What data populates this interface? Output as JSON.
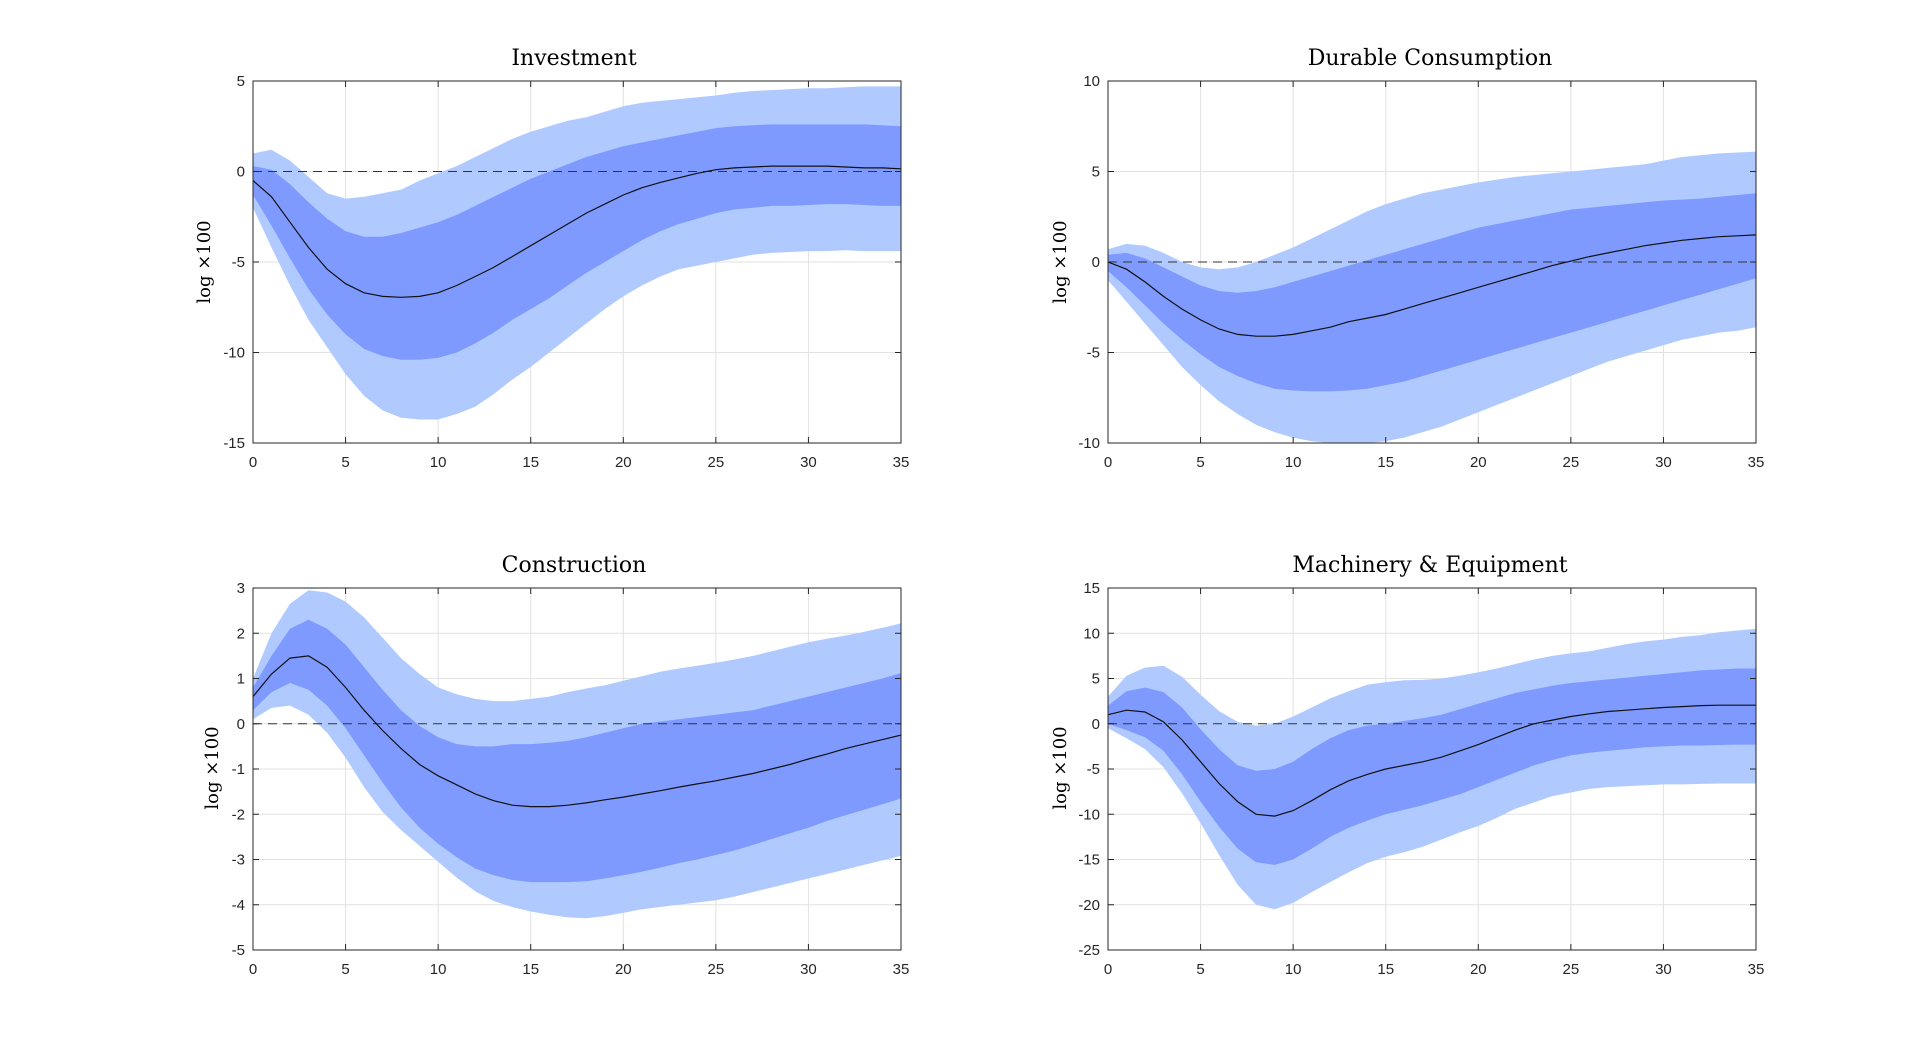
{
  "colors": {
    "outer_band": "#b0caff",
    "inner_band": "#7f9aff",
    "median": "#111111",
    "zero_line": "#333333"
  },
  "chart_data": [
    {
      "type": "area",
      "title": "Investment",
      "ylabel": "log ×100",
      "xlabel": "",
      "xlim": [
        0,
        35
      ],
      "ylim": [
        -15,
        5
      ],
      "xticks": [
        0,
        5,
        10,
        15,
        20,
        25,
        30,
        35
      ],
      "yticks": [
        -15,
        -10,
        -5,
        0,
        5
      ],
      "grid": true,
      "zero_line": true,
      "x": [
        0,
        1,
        2,
        3,
        4,
        5,
        6,
        7,
        8,
        9,
        10,
        11,
        12,
        13,
        14,
        15,
        16,
        17,
        18,
        19,
        20,
        21,
        22,
        23,
        24,
        25,
        26,
        27,
        28,
        29,
        30,
        31,
        32,
        33,
        34,
        35
      ],
      "series": [
        {
          "name": "median",
          "values": [
            -0.5,
            -1.4,
            -2.8,
            -4.2,
            -5.4,
            -6.2,
            -6.7,
            -6.9,
            -6.95,
            -6.9,
            -6.7,
            -6.3,
            -5.8,
            -5.3,
            -4.7,
            -4.1,
            -3.5,
            -2.9,
            -2.3,
            -1.8,
            -1.3,
            -0.9,
            -0.6,
            -0.35,
            -0.1,
            0.1,
            0.2,
            0.25,
            0.3,
            0.3,
            0.3,
            0.3,
            0.25,
            0.2,
            0.2,
            0.15
          ]
        },
        {
          "name": "inner_upper",
          "values": [
            0.3,
            0.1,
            -0.7,
            -1.7,
            -2.6,
            -3.3,
            -3.6,
            -3.6,
            -3.4,
            -3.1,
            -2.8,
            -2.4,
            -1.9,
            -1.4,
            -0.9,
            -0.4,
            0.0,
            0.4,
            0.8,
            1.1,
            1.4,
            1.6,
            1.8,
            2.0,
            2.2,
            2.4,
            2.5,
            2.55,
            2.6,
            2.6,
            2.6,
            2.6,
            2.6,
            2.6,
            2.55,
            2.5
          ]
        },
        {
          "name": "inner_lower",
          "values": [
            -1.3,
            -3.0,
            -4.8,
            -6.5,
            -7.9,
            -9.0,
            -9.8,
            -10.2,
            -10.4,
            -10.4,
            -10.3,
            -10.0,
            -9.5,
            -8.9,
            -8.2,
            -7.6,
            -7.0,
            -6.3,
            -5.6,
            -5.0,
            -4.4,
            -3.8,
            -3.3,
            -2.9,
            -2.6,
            -2.3,
            -2.1,
            -2.0,
            -1.9,
            -1.9,
            -1.85,
            -1.8,
            -1.8,
            -1.85,
            -1.9,
            -1.9
          ]
        },
        {
          "name": "outer_upper",
          "values": [
            1.0,
            1.2,
            0.6,
            -0.3,
            -1.2,
            -1.5,
            -1.4,
            -1.2,
            -1.0,
            -0.5,
            -0.1,
            0.3,
            0.8,
            1.3,
            1.8,
            2.2,
            2.5,
            2.8,
            3.0,
            3.3,
            3.6,
            3.8,
            3.9,
            4.0,
            4.1,
            4.2,
            4.35,
            4.45,
            4.5,
            4.55,
            4.6,
            4.6,
            4.65,
            4.7,
            4.7,
            4.7
          ]
        },
        {
          "name": "outer_lower",
          "values": [
            -2.0,
            -4.2,
            -6.3,
            -8.2,
            -9.7,
            -11.2,
            -12.4,
            -13.2,
            -13.6,
            -13.7,
            -13.7,
            -13.4,
            -13.0,
            -12.3,
            -11.5,
            -10.8,
            -10.0,
            -9.2,
            -8.4,
            -7.6,
            -6.9,
            -6.3,
            -5.8,
            -5.4,
            -5.2,
            -5.0,
            -4.8,
            -4.6,
            -4.5,
            -4.45,
            -4.4,
            -4.4,
            -4.35,
            -4.4,
            -4.4,
            -4.4
          ]
        }
      ]
    },
    {
      "type": "area",
      "title": "Durable Consumption",
      "ylabel": "log ×100",
      "xlabel": "",
      "xlim": [
        0,
        35
      ],
      "ylim": [
        -10,
        10
      ],
      "xticks": [
        0,
        5,
        10,
        15,
        20,
        25,
        30,
        35
      ],
      "yticks": [
        -10,
        -5,
        0,
        5,
        10
      ],
      "grid": true,
      "zero_line": true,
      "x": [
        0,
        1,
        2,
        3,
        4,
        5,
        6,
        7,
        8,
        9,
        10,
        11,
        12,
        13,
        14,
        15,
        16,
        17,
        18,
        19,
        20,
        21,
        22,
        23,
        24,
        25,
        26,
        27,
        28,
        29,
        30,
        31,
        32,
        33,
        34,
        35
      ],
      "series": [
        {
          "name": "median",
          "values": [
            0,
            -0.4,
            -1.1,
            -1.9,
            -2.6,
            -3.2,
            -3.7,
            -4.0,
            -4.1,
            -4.1,
            -4.0,
            -3.8,
            -3.6,
            -3.3,
            -3.1,
            -2.9,
            -2.6,
            -2.3,
            -2.0,
            -1.7,
            -1.4,
            -1.1,
            -0.8,
            -0.5,
            -0.2,
            0.05,
            0.3,
            0.5,
            0.7,
            0.9,
            1.05,
            1.2,
            1.3,
            1.4,
            1.45,
            1.5
          ]
        },
        {
          "name": "inner_upper",
          "values": [
            0.4,
            0.5,
            0.2,
            -0.3,
            -0.8,
            -1.3,
            -1.6,
            -1.7,
            -1.6,
            -1.4,
            -1.1,
            -0.8,
            -0.5,
            -0.2,
            0.1,
            0.4,
            0.7,
            1.0,
            1.3,
            1.6,
            1.9,
            2.1,
            2.3,
            2.5,
            2.7,
            2.9,
            3.0,
            3.1,
            3.2,
            3.3,
            3.4,
            3.45,
            3.5,
            3.6,
            3.7,
            3.8
          ]
        },
        {
          "name": "inner_lower",
          "values": [
            -0.5,
            -1.4,
            -2.4,
            -3.4,
            -4.3,
            -5.1,
            -5.8,
            -6.3,
            -6.7,
            -7.0,
            -7.1,
            -7.15,
            -7.15,
            -7.1,
            -7.0,
            -6.8,
            -6.6,
            -6.3,
            -6.0,
            -5.7,
            -5.4,
            -5.1,
            -4.8,
            -4.5,
            -4.2,
            -3.9,
            -3.6,
            -3.3,
            -3.0,
            -2.7,
            -2.4,
            -2.1,
            -1.8,
            -1.5,
            -1.2,
            -0.9
          ]
        },
        {
          "name": "outer_upper",
          "values": [
            0.7,
            1.0,
            0.9,
            0.5,
            0.0,
            -0.3,
            -0.4,
            -0.3,
            0.0,
            0.4,
            0.8,
            1.3,
            1.8,
            2.3,
            2.8,
            3.2,
            3.5,
            3.8,
            4.0,
            4.2,
            4.4,
            4.55,
            4.7,
            4.8,
            4.9,
            5.0,
            5.1,
            5.2,
            5.3,
            5.4,
            5.6,
            5.8,
            5.9,
            6.0,
            6.05,
            6.1
          ]
        },
        {
          "name": "outer_lower",
          "values": [
            -1.0,
            -2.2,
            -3.4,
            -4.6,
            -5.8,
            -6.8,
            -7.7,
            -8.4,
            -9.0,
            -9.4,
            -9.7,
            -9.9,
            -10.0,
            -10.05,
            -10.0,
            -9.9,
            -9.7,
            -9.4,
            -9.1,
            -8.7,
            -8.3,
            -7.9,
            -7.5,
            -7.1,
            -6.7,
            -6.3,
            -5.9,
            -5.5,
            -5.2,
            -4.9,
            -4.6,
            -4.3,
            -4.1,
            -3.9,
            -3.8,
            -3.6
          ]
        }
      ]
    },
    {
      "type": "area",
      "title": "Construction",
      "ylabel": "log ×100",
      "xlabel": "",
      "xlim": [
        0,
        35
      ],
      "ylim": [
        -5,
        3
      ],
      "xticks": [
        0,
        5,
        10,
        15,
        20,
        25,
        30,
        35
      ],
      "yticks": [
        -5,
        -4,
        -3,
        -2,
        -1,
        0,
        1,
        2,
        3
      ],
      "grid": true,
      "zero_line": true,
      "x": [
        0,
        1,
        2,
        3,
        4,
        5,
        6,
        7,
        8,
        9,
        10,
        11,
        12,
        13,
        14,
        15,
        16,
        17,
        18,
        19,
        20,
        21,
        22,
        23,
        24,
        25,
        26,
        27,
        28,
        29,
        30,
        31,
        32,
        33,
        34,
        35
      ],
      "series": [
        {
          "name": "median",
          "values": [
            0.6,
            1.1,
            1.45,
            1.5,
            1.25,
            0.8,
            0.3,
            -0.15,
            -0.55,
            -0.9,
            -1.15,
            -1.35,
            -1.55,
            -1.7,
            -1.8,
            -1.83,
            -1.83,
            -1.8,
            -1.75,
            -1.68,
            -1.62,
            -1.55,
            -1.48,
            -1.4,
            -1.33,
            -1.26,
            -1.18,
            -1.1,
            -1.0,
            -0.9,
            -0.78,
            -0.67,
            -0.55,
            -0.45,
            -0.35,
            -0.25
          ]
        },
        {
          "name": "inner_upper",
          "values": [
            0.8,
            1.5,
            2.1,
            2.3,
            2.1,
            1.75,
            1.25,
            0.75,
            0.3,
            -0.05,
            -0.3,
            -0.45,
            -0.5,
            -0.5,
            -0.45,
            -0.45,
            -0.42,
            -0.38,
            -0.3,
            -0.2,
            -0.1,
            0.0,
            0.05,
            0.1,
            0.15,
            0.2,
            0.25,
            0.3,
            0.4,
            0.5,
            0.6,
            0.7,
            0.8,
            0.9,
            1.0,
            1.12
          ]
        },
        {
          "name": "inner_lower",
          "values": [
            0.3,
            0.7,
            0.9,
            0.75,
            0.4,
            -0.1,
            -0.7,
            -1.3,
            -1.85,
            -2.3,
            -2.65,
            -2.95,
            -3.2,
            -3.35,
            -3.45,
            -3.5,
            -3.5,
            -3.5,
            -3.48,
            -3.42,
            -3.35,
            -3.27,
            -3.18,
            -3.08,
            -3.0,
            -2.9,
            -2.8,
            -2.68,
            -2.55,
            -2.42,
            -2.3,
            -2.15,
            -2.02,
            -1.9,
            -1.78,
            -1.65
          ]
        },
        {
          "name": "outer_upper",
          "values": [
            1.0,
            2.0,
            2.65,
            2.95,
            2.9,
            2.7,
            2.35,
            1.9,
            1.45,
            1.1,
            0.8,
            0.65,
            0.55,
            0.5,
            0.5,
            0.55,
            0.6,
            0.7,
            0.78,
            0.85,
            0.95,
            1.05,
            1.15,
            1.22,
            1.28,
            1.35,
            1.42,
            1.5,
            1.6,
            1.7,
            1.8,
            1.88,
            1.95,
            2.03,
            2.12,
            2.22
          ]
        },
        {
          "name": "outer_lower",
          "values": [
            0.1,
            0.35,
            0.4,
            0.2,
            -0.2,
            -0.75,
            -1.4,
            -1.95,
            -2.35,
            -2.7,
            -3.05,
            -3.4,
            -3.7,
            -3.92,
            -4.05,
            -4.15,
            -4.22,
            -4.28,
            -4.3,
            -4.25,
            -4.18,
            -4.1,
            -4.05,
            -4.0,
            -3.95,
            -3.9,
            -3.82,
            -3.72,
            -3.62,
            -3.52,
            -3.42,
            -3.32,
            -3.22,
            -3.12,
            -3.02,
            -2.92
          ]
        }
      ]
    },
    {
      "type": "area",
      "title": "Machinery & Equipment",
      "ylabel": "log ×100",
      "xlabel": "",
      "xlim": [
        0,
        35
      ],
      "ylim": [
        -25,
        15
      ],
      "xticks": [
        0,
        5,
        10,
        15,
        20,
        25,
        30,
        35
      ],
      "yticks": [
        -25,
        -20,
        -15,
        -10,
        -5,
        0,
        5,
        10,
        15
      ],
      "grid": true,
      "zero_line": true,
      "x": [
        0,
        1,
        2,
        3,
        4,
        5,
        6,
        7,
        8,
        9,
        10,
        11,
        12,
        13,
        14,
        15,
        16,
        17,
        18,
        19,
        20,
        21,
        22,
        23,
        24,
        25,
        26,
        27,
        28,
        29,
        30,
        31,
        32,
        33,
        34,
        35
      ],
      "series": [
        {
          "name": "median",
          "values": [
            1.0,
            1.5,
            1.3,
            0.2,
            -1.8,
            -4.2,
            -6.6,
            -8.6,
            -10.0,
            -10.2,
            -9.6,
            -8.5,
            -7.3,
            -6.3,
            -5.6,
            -5.0,
            -4.6,
            -4.2,
            -3.7,
            -3.0,
            -2.3,
            -1.5,
            -0.7,
            0.0,
            0.4,
            0.8,
            1.1,
            1.35,
            1.5,
            1.65,
            1.8,
            1.9,
            2.0,
            2.05,
            2.05,
            2.05
          ]
        },
        {
          "name": "inner_upper",
          "values": [
            2.0,
            3.6,
            4.0,
            3.5,
            1.8,
            -0.6,
            -2.8,
            -4.6,
            -5.2,
            -5.0,
            -4.2,
            -2.8,
            -1.6,
            -0.7,
            -0.2,
            0.0,
            0.3,
            0.6,
            1.0,
            1.6,
            2.2,
            2.8,
            3.4,
            3.8,
            4.2,
            4.5,
            4.7,
            4.9,
            5.1,
            5.3,
            5.5,
            5.7,
            5.9,
            6.0,
            6.1,
            6.1
          ]
        },
        {
          "name": "inner_lower",
          "values": [
            0.0,
            -0.7,
            -1.5,
            -3.0,
            -5.6,
            -8.6,
            -11.4,
            -13.8,
            -15.3,
            -15.6,
            -15.0,
            -13.8,
            -12.5,
            -11.5,
            -10.7,
            -10.0,
            -9.5,
            -9.0,
            -8.4,
            -7.8,
            -7.0,
            -6.2,
            -5.4,
            -4.6,
            -4.0,
            -3.5,
            -3.2,
            -3.0,
            -2.8,
            -2.6,
            -2.5,
            -2.4,
            -2.4,
            -2.35,
            -2.3,
            -2.3
          ]
        },
        {
          "name": "outer_upper",
          "values": [
            3.0,
            5.3,
            6.2,
            6.4,
            5.2,
            3.2,
            1.4,
            0.2,
            -0.2,
            0.0,
            0.8,
            1.8,
            2.8,
            3.6,
            4.3,
            4.6,
            4.8,
            4.85,
            5.0,
            5.3,
            5.7,
            6.1,
            6.6,
            7.1,
            7.5,
            7.8,
            8.0,
            8.4,
            8.8,
            9.1,
            9.3,
            9.6,
            9.8,
            10.1,
            10.3,
            10.5
          ]
        },
        {
          "name": "outer_lower",
          "values": [
            -0.5,
            -1.6,
            -2.8,
            -4.8,
            -7.7,
            -11.0,
            -14.5,
            -17.8,
            -20.0,
            -20.5,
            -19.8,
            -18.6,
            -17.5,
            -16.4,
            -15.4,
            -14.7,
            -14.2,
            -13.6,
            -12.8,
            -12.0,
            -11.3,
            -10.4,
            -9.4,
            -8.7,
            -8.0,
            -7.6,
            -7.2,
            -7.0,
            -6.9,
            -6.8,
            -6.7,
            -6.7,
            -6.65,
            -6.6,
            -6.6,
            -6.6
          ]
        }
      ]
    }
  ]
}
